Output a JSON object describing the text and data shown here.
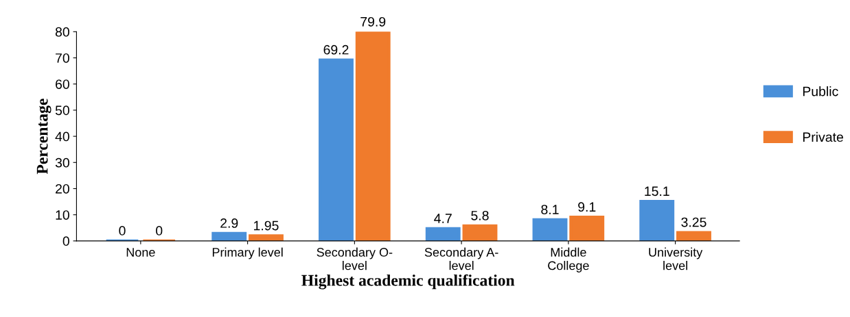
{
  "chart_data": {
    "type": "bar",
    "xlabel": "Highest academic qualification",
    "ylabel": "Percentage",
    "categories": [
      "None",
      "Primary level",
      "Secondary O-\nlevel",
      "Secondary A-\nlevel",
      "Middle\nCollege",
      "University\nlevel"
    ],
    "series": [
      {
        "name": "Public",
        "color": "#4a90d9",
        "values": [
          0,
          2.9,
          69.2,
          4.7,
          8.1,
          15.1
        ]
      },
      {
        "name": "Private",
        "color": "#f07b2c",
        "values": [
          0,
          1.95,
          79.9,
          5.8,
          9.1,
          3.25
        ]
      }
    ],
    "ylim": [
      0,
      80
    ],
    "yticks": [
      0,
      10,
      20,
      30,
      40,
      50,
      60,
      70,
      80
    ],
    "data_labels": true,
    "grid": false,
    "legend": "right"
  }
}
